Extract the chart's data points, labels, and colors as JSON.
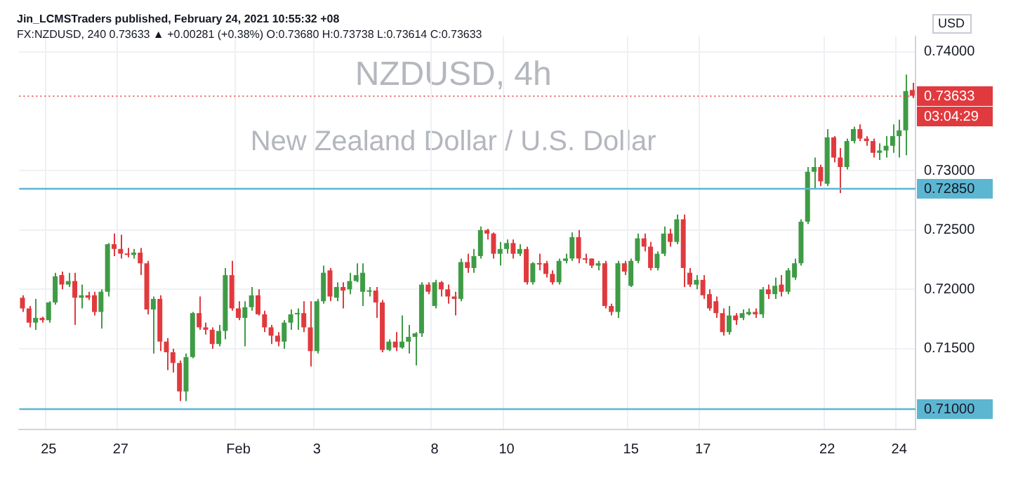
{
  "chart_data": {
    "type": "candlestick",
    "title": "NZDUSD, 4h",
    "subtitle": "New Zealand Dollar / U.S. Dollar",
    "ylabel": "USD",
    "annotations": [
      "Jin_LCMSTraders published, February 24, 2021 10:55:32 +08",
      "FX:NZDUSD, 240 0.73633 ▲ +0.00281 (+0.38%) O:0.73680 H:0.73738 L:0.73614 C:0.73633",
      "03:04:29"
    ],
    "categories": [
      null,
      null,
      null,
      null,
      "25",
      null,
      null,
      null,
      null,
      null,
      null,
      null,
      null,
      null,
      null,
      "27",
      null,
      null,
      null,
      null,
      null,
      null,
      null,
      null,
      null,
      null,
      null,
      null,
      null,
      null,
      null,
      null,
      null,
      "Feb",
      null,
      null,
      null,
      null,
      null,
      null,
      null,
      null,
      null,
      null,
      null,
      "3",
      null,
      null,
      null,
      null,
      null,
      null,
      null,
      null,
      null,
      null,
      null,
      null,
      null,
      null,
      null,
      null,
      null,
      "8",
      null,
      null,
      null,
      null,
      null,
      null,
      null,
      null,
      null,
      null,
      "10",
      null,
      null,
      null,
      null,
      null,
      null,
      null,
      null,
      null,
      null,
      null,
      null,
      null,
      null,
      null,
      null,
      null,
      null,
      "15",
      null,
      null,
      null,
      null,
      null,
      null,
      null,
      null,
      null,
      null,
      "17",
      null,
      null,
      null,
      null,
      null,
      null,
      null,
      null,
      null,
      null,
      null,
      null,
      null,
      null,
      null,
      null,
      null,
      null,
      "22",
      null,
      null,
      null,
      null,
      null,
      null,
      null,
      null,
      null,
      null,
      "24",
      null,
      null
    ],
    "ohlc": [
      [
        0.7193,
        0.7195,
        0.7181,
        0.7184
      ],
      [
        0.7184,
        0.7186,
        0.7168,
        0.7172
      ],
      [
        0.7172,
        0.7192,
        0.7166,
        0.7176
      ],
      [
        0.7176,
        0.7177,
        0.7172,
        0.7174
      ],
      [
        0.7174,
        0.719,
        0.7172,
        0.7189
      ],
      [
        0.7189,
        0.7214,
        0.7187,
        0.7211
      ],
      [
        0.7212,
        0.7215,
        0.72,
        0.7204
      ],
      [
        0.7204,
        0.7214,
        0.7202,
        0.7207
      ],
      [
        0.7207,
        0.7214,
        0.717,
        0.7193
      ],
      [
        0.7193,
        0.7204,
        0.7184,
        0.7195
      ],
      [
        0.7195,
        0.7198,
        0.7191,
        0.7193
      ],
      [
        0.7195,
        0.7198,
        0.7178,
        0.7181
      ],
      [
        0.7181,
        0.72,
        0.7167,
        0.7198
      ],
      [
        0.7198,
        0.7239,
        0.7194,
        0.7238
      ],
      [
        0.7238,
        0.7247,
        0.7228,
        0.7234
      ],
      [
        0.7234,
        0.7246,
        0.7226,
        0.723
      ],
      [
        0.723,
        0.7235,
        0.7227,
        0.7229
      ],
      [
        0.7229,
        0.7234,
        0.7226,
        0.7231
      ],
      [
        0.7231,
        0.7235,
        0.7212,
        0.7222
      ],
      [
        0.7222,
        0.7224,
        0.7179,
        0.7183
      ],
      [
        0.7183,
        0.7194,
        0.7146,
        0.7192
      ],
      [
        0.7192,
        0.7195,
        0.7148,
        0.7156
      ],
      [
        0.7156,
        0.7159,
        0.7132,
        0.7147
      ],
      [
        0.7147,
        0.715,
        0.713,
        0.7138
      ],
      [
        0.7138,
        0.714,
        0.7106,
        0.7114
      ],
      [
        0.7114,
        0.7146,
        0.7106,
        0.7143
      ],
      [
        0.7143,
        0.7181,
        0.7142,
        0.718
      ],
      [
        0.718,
        0.7194,
        0.7166,
        0.7168
      ],
      [
        0.7168,
        0.7172,
        0.7162,
        0.7166
      ],
      [
        0.7166,
        0.7168,
        0.715,
        0.7154
      ],
      [
        0.7154,
        0.717,
        0.7152,
        0.7165
      ],
      [
        0.7165,
        0.7218,
        0.7158,
        0.7212
      ],
      [
        0.7212,
        0.7224,
        0.7182,
        0.7184
      ],
      [
        0.7184,
        0.719,
        0.7174,
        0.7176
      ],
      [
        0.7176,
        0.719,
        0.7152,
        0.7185
      ],
      [
        0.7185,
        0.7202,
        0.7182,
        0.7195
      ],
      [
        0.7195,
        0.72,
        0.7178,
        0.7179
      ],
      [
        0.7179,
        0.7182,
        0.7164,
        0.7168
      ],
      [
        0.7168,
        0.717,
        0.7154,
        0.7161
      ],
      [
        0.7161,
        0.7164,
        0.7152,
        0.7156
      ],
      [
        0.7156,
        0.7174,
        0.715,
        0.7172
      ],
      [
        0.7172,
        0.7183,
        0.7166,
        0.7179
      ],
      [
        0.7179,
        0.7184,
        0.7166,
        0.718
      ],
      [
        0.718,
        0.719,
        0.7164,
        0.7168
      ],
      [
        0.7168,
        0.719,
        0.7135,
        0.7148
      ],
      [
        0.7148,
        0.7192,
        0.7146,
        0.719
      ],
      [
        0.719,
        0.722,
        0.7188,
        0.7214
      ],
      [
        0.7216,
        0.7218,
        0.719,
        0.7194
      ],
      [
        0.7193,
        0.7206,
        0.719,
        0.7202
      ],
      [
        0.7202,
        0.7206,
        0.7184,
        0.7199
      ],
      [
        0.72,
        0.7214,
        0.7196,
        0.7207
      ],
      [
        0.7207,
        0.7222,
        0.7206,
        0.7212
      ],
      [
        0.7198,
        0.7222,
        0.7186,
        0.7214
      ],
      [
        0.7198,
        0.7202,
        0.7194,
        0.7199
      ],
      [
        0.7199,
        0.7202,
        0.7176,
        0.7189
      ],
      [
        0.7189,
        0.7191,
        0.7147,
        0.7149
      ],
      [
        0.7149,
        0.7158,
        0.7148,
        0.7156
      ],
      [
        0.7156,
        0.7164,
        0.7148,
        0.7151
      ],
      [
        0.7151,
        0.7178,
        0.715,
        0.7156
      ],
      [
        0.7156,
        0.717,
        0.7146,
        0.716
      ],
      [
        0.716,
        0.7164,
        0.7136,
        0.7163
      ],
      [
        0.7163,
        0.7206,
        0.716,
        0.7204
      ],
      [
        0.7204,
        0.7206,
        0.7196,
        0.7198
      ],
      [
        0.7186,
        0.7208,
        0.7184,
        0.7206
      ],
      [
        0.7206,
        0.7207,
        0.7194,
        0.72
      ],
      [
        0.72,
        0.7204,
        0.7188,
        0.7194
      ],
      [
        0.7194,
        0.7198,
        0.7178,
        0.7192
      ],
      [
        0.7192,
        0.7226,
        0.719,
        0.7223
      ],
      [
        0.7223,
        0.723,
        0.7214,
        0.7218
      ],
      [
        0.7218,
        0.7234,
        0.7214,
        0.7228
      ],
      [
        0.7228,
        0.7253,
        0.7226,
        0.725
      ],
      [
        0.725,
        0.7251,
        0.7242,
        0.7247
      ],
      [
        0.7247,
        0.7248,
        0.7226,
        0.723
      ],
      [
        0.723,
        0.724,
        0.722,
        0.7234
      ],
      [
        0.7234,
        0.7242,
        0.723,
        0.7239
      ],
      [
        0.7239,
        0.7242,
        0.7226,
        0.723
      ],
      [
        0.723,
        0.7238,
        0.7228,
        0.7234
      ],
      [
        0.7234,
        0.7236,
        0.7204,
        0.7206
      ],
      [
        0.7206,
        0.7223,
        0.7204,
        0.7222
      ],
      [
        0.7222,
        0.723,
        0.7216,
        0.7221
      ],
      [
        0.7222,
        0.7224,
        0.721,
        0.7213
      ],
      [
        0.7213,
        0.7216,
        0.7204,
        0.7206
      ],
      [
        0.7206,
        0.7226,
        0.7204,
        0.7224
      ],
      [
        0.7224,
        0.723,
        0.7222,
        0.7226
      ],
      [
        0.7226,
        0.7248,
        0.7224,
        0.7244
      ],
      [
        0.7244,
        0.725,
        0.7222,
        0.7226
      ],
      [
        0.7226,
        0.723,
        0.7222,
        0.7225
      ],
      [
        0.7226,
        0.7226,
        0.7218,
        0.722
      ],
      [
        0.722,
        0.7224,
        0.7216,
        0.7222
      ],
      [
        0.7222,
        0.7224,
        0.7184,
        0.7186
      ],
      [
        0.7186,
        0.7188,
        0.7178,
        0.7181
      ],
      [
        0.7181,
        0.7224,
        0.7176,
        0.7222
      ],
      [
        0.7222,
        0.7224,
        0.7212,
        0.7215
      ],
      [
        0.7203,
        0.7226,
        0.7202,
        0.7224
      ],
      [
        0.7224,
        0.7247,
        0.7222,
        0.7243
      ],
      [
        0.7243,
        0.7247,
        0.7232,
        0.7236
      ],
      [
        0.7236,
        0.724,
        0.7216,
        0.7218
      ],
      [
        0.7218,
        0.7232,
        0.7216,
        0.723
      ],
      [
        0.723,
        0.7253,
        0.7228,
        0.7247
      ],
      [
        0.7247,
        0.7251,
        0.7236,
        0.724
      ],
      [
        0.724,
        0.7263,
        0.7238,
        0.7259
      ],
      [
        0.7259,
        0.7263,
        0.7202,
        0.7218
      ],
      [
        0.7214,
        0.7218,
        0.7202,
        0.7204
      ],
      [
        0.7204,
        0.7212,
        0.72,
        0.7208
      ],
      [
        0.7208,
        0.7212,
        0.7192,
        0.7195
      ],
      [
        0.7196,
        0.72,
        0.7182,
        0.7184
      ],
      [
        0.719,
        0.7194,
        0.7176,
        0.718
      ],
      [
        0.718,
        0.7184,
        0.7161,
        0.7164
      ],
      [
        0.7164,
        0.7186,
        0.7162,
        0.7178
      ],
      [
        0.7178,
        0.718,
        0.717,
        0.7174
      ],
      [
        0.7176,
        0.7183,
        0.7174,
        0.718
      ],
      [
        0.7179,
        0.7184,
        0.7178,
        0.7181
      ],
      [
        0.7181,
        0.7184,
        0.7176,
        0.7179
      ],
      [
        0.7179,
        0.7202,
        0.7176,
        0.72
      ],
      [
        0.72,
        0.7204,
        0.7192,
        0.7196
      ],
      [
        0.7196,
        0.721,
        0.7192,
        0.7203
      ],
      [
        0.7204,
        0.7212,
        0.7194,
        0.7198
      ],
      [
        0.7198,
        0.7218,
        0.7196,
        0.7216
      ],
      [
        0.721,
        0.7226,
        0.7208,
        0.7222
      ],
      [
        0.7222,
        0.7259,
        0.722,
        0.7257
      ],
      [
        0.7257,
        0.7303,
        0.7255,
        0.7299
      ],
      [
        0.7299,
        0.7311,
        0.7285,
        0.7303
      ],
      [
        0.7303,
        0.7305,
        0.7287,
        0.7291
      ],
      [
        0.7289,
        0.7335,
        0.7287,
        0.7328
      ],
      [
        0.7328,
        0.7329,
        0.7307,
        0.7311
      ],
      [
        0.7311,
        0.7319,
        0.7281,
        0.7303
      ],
      [
        0.7303,
        0.7327,
        0.7301,
        0.7325
      ],
      [
        0.7325,
        0.7337,
        0.7323,
        0.7335
      ],
      [
        0.7335,
        0.7339,
        0.7325,
        0.7327
      ],
      [
        0.7327,
        0.7329,
        0.7321,
        0.7325
      ],
      [
        0.7325,
        0.7327,
        0.7311,
        0.7315
      ],
      [
        0.7315,
        0.7323,
        0.7309,
        0.7317
      ],
      [
        0.7317,
        0.7329,
        0.7311,
        0.7321
      ],
      [
        0.7321,
        0.7339,
        0.7315,
        0.7329
      ],
      [
        0.7329,
        0.7343,
        0.7311,
        0.7334
      ],
      [
        0.7334,
        0.7381,
        0.7313,
        0.7367
      ],
      [
        0.7368,
        0.7374,
        0.7361,
        0.7363
      ]
    ],
    "colors": [
      "#e03a3e",
      "#e03a3e",
      "#3f9b45",
      "#e03a3e",
      "#3f9b45",
      "#3f9b45",
      "#e03a3e",
      "#3f9b45",
      "#e03a3e",
      "#3f9b45",
      "#e03a3e",
      "#e03a3e",
      "#3f9b45",
      "#3f9b45",
      "#e03a3e",
      "#e03a3e",
      "#e03a3e",
      "#3f9b45",
      "#e03a3e",
      "#e03a3e",
      "#3f9b45",
      "#e03a3e",
      "#e03a3e",
      "#e03a3e",
      "#e03a3e",
      "#3f9b45",
      "#3f9b45",
      "#e03a3e",
      "#e03a3e",
      "#e03a3e",
      "#3f9b45",
      "#3f9b45",
      "#e03a3e",
      "#e03a3e",
      "#3f9b45",
      "#3f9b45",
      "#e03a3e",
      "#e03a3e",
      "#e03a3e",
      "#e03a3e",
      "#3f9b45",
      "#3f9b45",
      "#3f9b45",
      "#e03a3e",
      "#e03a3e",
      "#3f9b45",
      "#3f9b45",
      "#e03a3e",
      "#3f9b45",
      "#e03a3e",
      "#3f9b45",
      "#3f9b45",
      "#3f9b45",
      "#3f9b45",
      "#e03a3e",
      "#e03a3e",
      "#3f9b45",
      "#e03a3e",
      "#3f9b45",
      "#3f9b45",
      "#3f9b45",
      "#3f9b45",
      "#e03a3e",
      "#3f9b45",
      "#e03a3e",
      "#e03a3e",
      "#e03a3e",
      "#3f9b45",
      "#e03a3e",
      "#3f9b45",
      "#3f9b45",
      "#e03a3e",
      "#e03a3e",
      "#3f9b45",
      "#3f9b45",
      "#e03a3e",
      "#3f9b45",
      "#e03a3e",
      "#3f9b45",
      "#e03a3e",
      "#e03a3e",
      "#e03a3e",
      "#3f9b45",
      "#3f9b45",
      "#3f9b45",
      "#e03a3e",
      "#e03a3e",
      "#e03a3e",
      "#3f9b45",
      "#e03a3e",
      "#e03a3e",
      "#3f9b45",
      "#e03a3e",
      "#3f9b45",
      "#3f9b45",
      "#e03a3e",
      "#e03a3e",
      "#3f9b45",
      "#3f9b45",
      "#e03a3e",
      "#3f9b45",
      "#e03a3e",
      "#e03a3e",
      "#3f9b45",
      "#e03a3e",
      "#e03a3e",
      "#e03a3e",
      "#e03a3e",
      "#3f9b45",
      "#e03a3e",
      "#3f9b45",
      "#3f9b45",
      "#e03a3e",
      "#3f9b45",
      "#e03a3e",
      "#3f9b45",
      "#e03a3e",
      "#3f9b45",
      "#3f9b45",
      "#3f9b45",
      "#3f9b45",
      "#3f9b45",
      "#e03a3e",
      "#3f9b45",
      "#e03a3e",
      "#e03a3e",
      "#3f9b45",
      "#3f9b45",
      "#e03a3e",
      "#e03a3e",
      "#e03a3e",
      "#3f9b45",
      "#3f9b45",
      "#3f9b45",
      "#3f9b45",
      "#3f9b45",
      "#e03a3e"
    ],
    "ylim": [
      0.7082,
      0.7413
    ],
    "yticks": [
      {
        "value": 0.715,
        "label": "0.71500"
      },
      {
        "value": 0.72,
        "label": "0.72000"
      },
      {
        "value": 0.725,
        "label": "0.72500"
      },
      {
        "value": 0.73,
        "label": "0.73000"
      },
      {
        "value": 0.74,
        "label": "0.74000"
      }
    ],
    "ref_lines": [
      {
        "axis": "y",
        "value": 0.7285,
        "label": "0.72850",
        "color": "#5cb6d2"
      },
      {
        "axis": "y",
        "value": 0.71,
        "label": "0.71000",
        "color": "#5cb6d2"
      },
      {
        "axis": "y",
        "value": 0.73633,
        "label": "0.73633",
        "color": "#e03a3e",
        "line_style": "dotted"
      }
    ],
    "grid": true
  }
}
